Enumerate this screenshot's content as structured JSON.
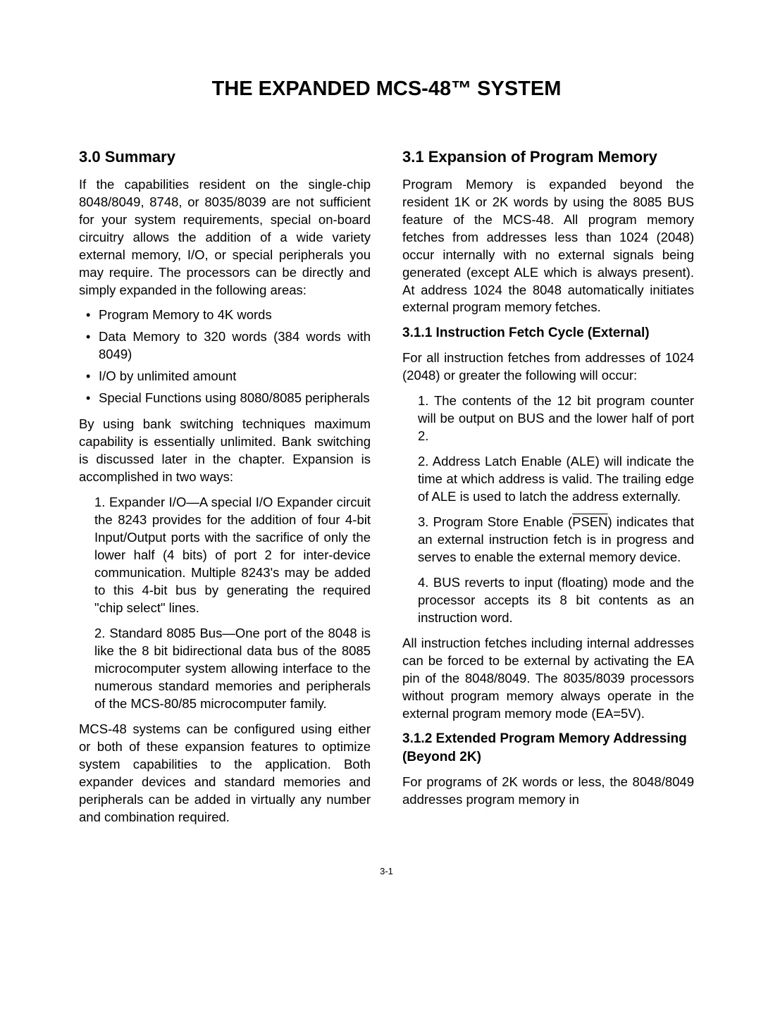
{
  "title": "THE EXPANDED MCS-48™ SYSTEM",
  "page_number": "3-1",
  "left": {
    "heading": "3.0  Summary",
    "p1": "If the capabilities resident on the single-chip 8048/8049, 8748, or 8035/8039 are not sufficient for your system requirements, special on-board circuitry allows the addition of a wide variety external memory, I/O, or special peripherals you may require. The processors can be directly and simply expanded in the following areas:",
    "bullets": [
      "Program Memory to 4K words",
      "Data Memory to 320 words (384 words with 8049)",
      "I/O by unlimited amount",
      "Special Functions using 8080/8085 peripherals"
    ],
    "p2": "By using bank switching techniques maximum capability is essentially unlimited. Bank switching is discussed later in the chapter. Expansion is accomplished in two ways:",
    "n1": "1. Expander I/O—A special I/O Expander circuit the 8243 provides for the addition of four 4-bit Input/Output ports with the sacrifice of only the lower half (4 bits) of port 2 for inter-device communication. Multiple 8243's may be added to this 4-bit bus by generating the required \"chip select\" lines.",
    "n2": "2. Standard 8085 Bus—One port of the 8048 is like the 8 bit bidirectional data bus of the 8085 microcomputer system allowing interface to the numerous standard memories and peripherals of the MCS-80/85 microcomputer family.",
    "p3": "MCS-48 systems can be configured using either or both of these expansion features to optimize system capabilities to the application. Both expander devices and standard memories and peripherals can be added in virtually any number and combination required."
  },
  "right": {
    "heading": "3.1  Expansion of Program Memory",
    "p1": "Program Memory is expanded beyond the resident 1K or 2K words by using the 8085 BUS feature of the MCS-48. All program memory fetches from addresses less than 1024 (2048) occur internally with no external signals being generated (except ALE which is always present). At address 1024 the 8048 automatically initiates external program memory fetches.",
    "sub1": "3.1.1 Instruction Fetch Cycle (External)",
    "p2": "For all instruction fetches from addresses of 1024 (2048) or greater the following will occur:",
    "n1": "1. The contents of the 12 bit program counter will be output on BUS and the lower half of port 2.",
    "n2": "2. Address Latch Enable (ALE) will indicate the time at which address is valid. The trailing edge of ALE is used to latch the address externally.",
    "n3_pre": "3.  Program Store Enable (",
    "n3_psen": "PSEN",
    "n3_post": ") indicates that an external instruction fetch is in progress and serves to enable the external memory device.",
    "n4": "4. BUS reverts to input (floating) mode and the processor accepts its 8 bit contents as an instruction word.",
    "p3": "All instruction fetches including internal addresses can be forced to be external by activating the EA pin of the 8048/8049. The 8035/8039 processors without program memory always operate in the external program memory mode (EA=5V).",
    "sub2": "3.1.2 Extended Program Memory Addressing (Beyond 2K)",
    "p4": "For programs of 2K words or less, the 8048/8049 addresses program memory in"
  }
}
